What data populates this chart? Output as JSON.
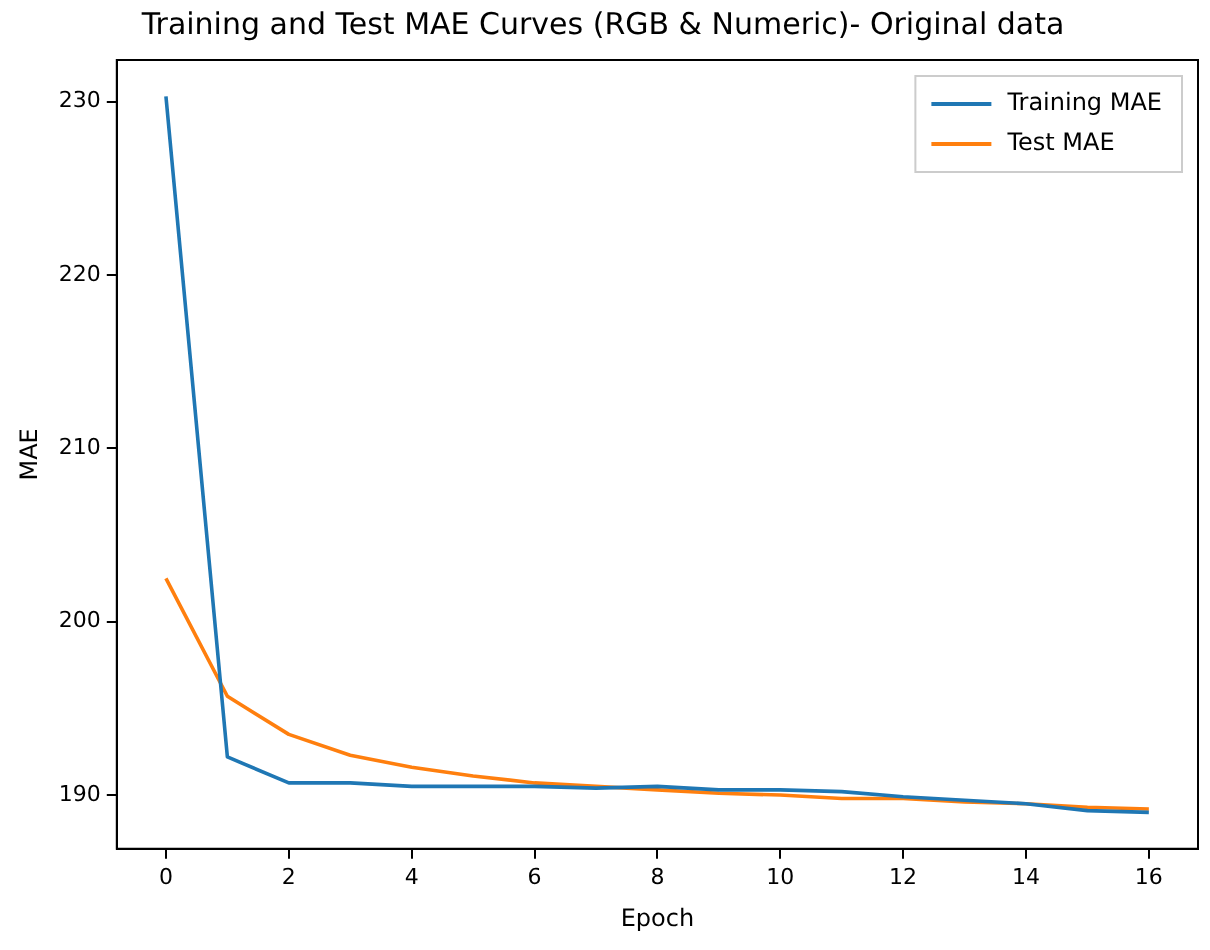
{
  "chart_data": {
    "type": "line",
    "title": "Training and Test MAE Curves (RGB & Numeric)- Original data",
    "xlabel": "Epoch",
    "ylabel": "MAE",
    "x": [
      0,
      1,
      2,
      3,
      4,
      5,
      6,
      7,
      8,
      9,
      10,
      11,
      12,
      13,
      14,
      15,
      16
    ],
    "series": [
      {
        "name": "Training MAE",
        "color": "#1f77b4",
        "values": [
          230.3,
          192.2,
          190.7,
          190.7,
          190.5,
          190.5,
          190.5,
          190.4,
          190.5,
          190.3,
          190.3,
          190.2,
          189.9,
          189.7,
          189.5,
          189.1,
          189.0
        ]
      },
      {
        "name": "Test MAE",
        "color": "#ff7f0e",
        "values": [
          202.5,
          195.7,
          193.5,
          192.3,
          191.6,
          191.1,
          190.7,
          190.5,
          190.3,
          190.1,
          190.0,
          189.8,
          189.8,
          189.6,
          189.5,
          189.3,
          189.2
        ]
      }
    ],
    "xlim": [
      -0.8,
      16.8
    ],
    "xticks": [
      0,
      2,
      4,
      6,
      8,
      10,
      12,
      14,
      16
    ],
    "ylim": [
      186.9,
      232.4
    ],
    "yticks": [
      190,
      200,
      210,
      220,
      230
    ],
    "grid": false,
    "legend": "top right",
    "marker": "none",
    "line_style": "solid"
  }
}
